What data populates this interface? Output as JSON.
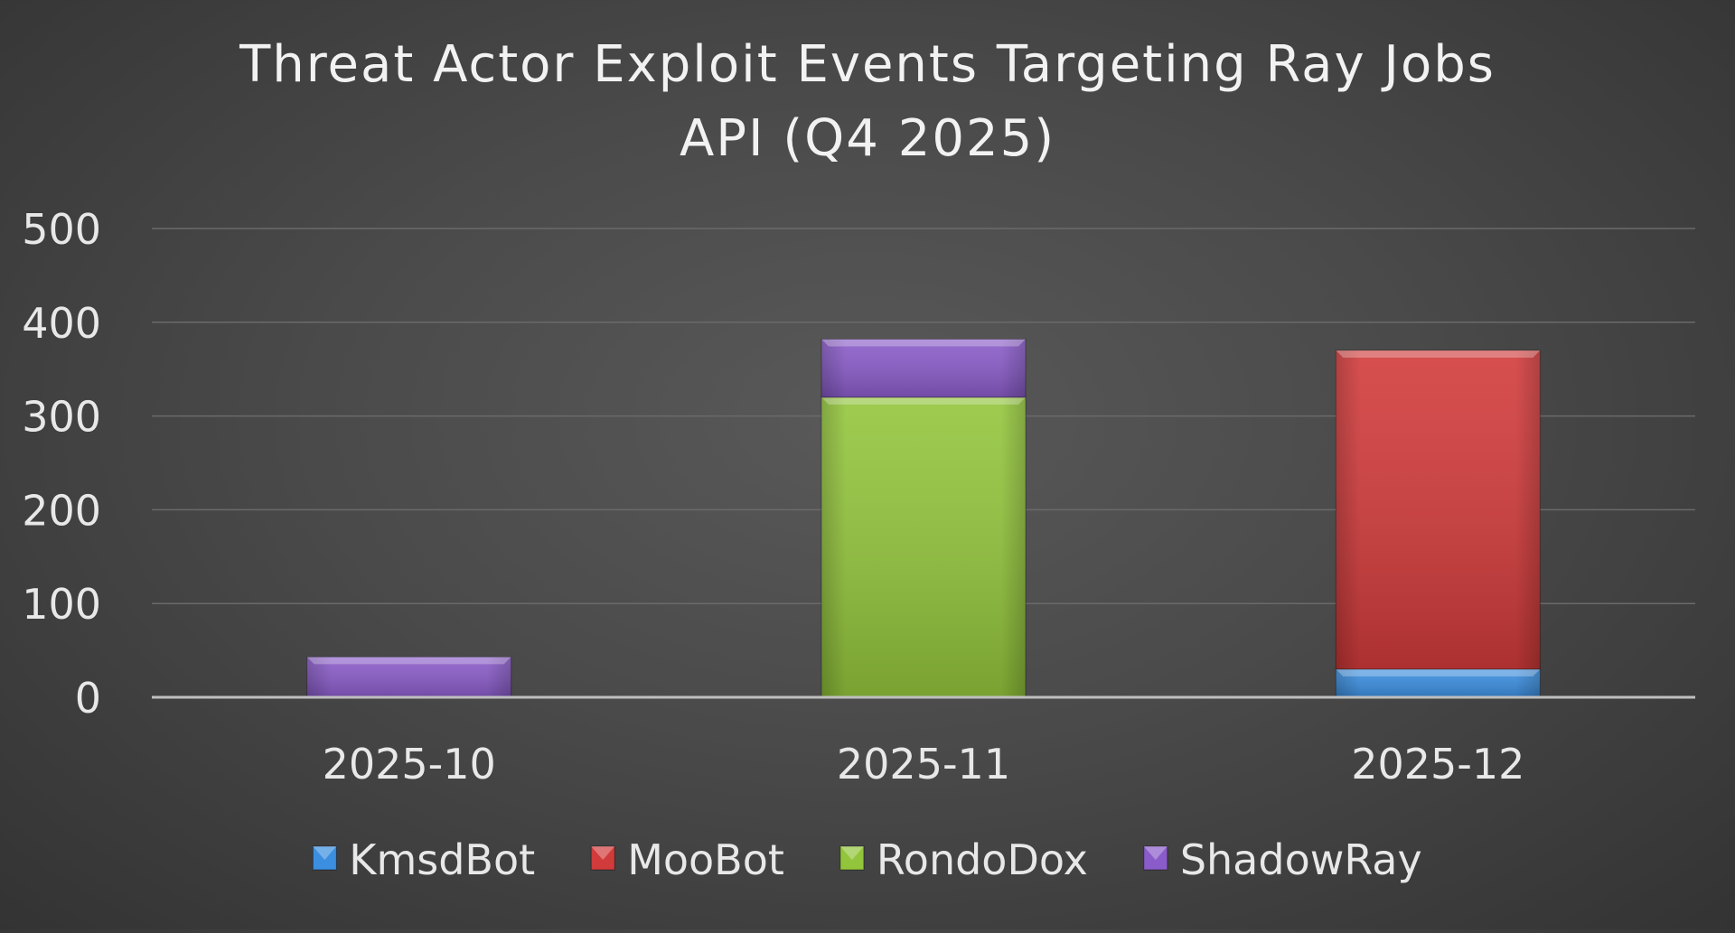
{
  "chart_data": {
    "type": "bar",
    "stacked": true,
    "title": "Threat Actor Exploit Events Targeting Ray Jobs API (Q4 2025)",
    "title_lines": [
      "Threat Actor Exploit Events Targeting Ray Jobs",
      "API (Q4 2025)"
    ],
    "categories": [
      "2025-10",
      "2025-11",
      "2025-12"
    ],
    "series": [
      {
        "name": "KmsdBot",
        "color": "#3c8fe0",
        "values": [
          0,
          0,
          30
        ]
      },
      {
        "name": "MooBot",
        "color": "#d23b3b",
        "values": [
          0,
          0,
          340
        ]
      },
      {
        "name": "RondoDox",
        "color": "#93c53c",
        "values": [
          0,
          320,
          0
        ]
      },
      {
        "name": "ShadowRay",
        "color": "#8a5cc9",
        "values": [
          43,
          62,
          0
        ]
      }
    ],
    "ylim": [
      0,
      500
    ],
    "yticks": [
      "0",
      "100",
      "200",
      "300",
      "400",
      "500"
    ],
    "grid": true,
    "legend": "bottom",
    "colors": {
      "text": "#e8e8e8",
      "gridline": "#6a6a6a",
      "axis": "#bfbfbf"
    }
  }
}
